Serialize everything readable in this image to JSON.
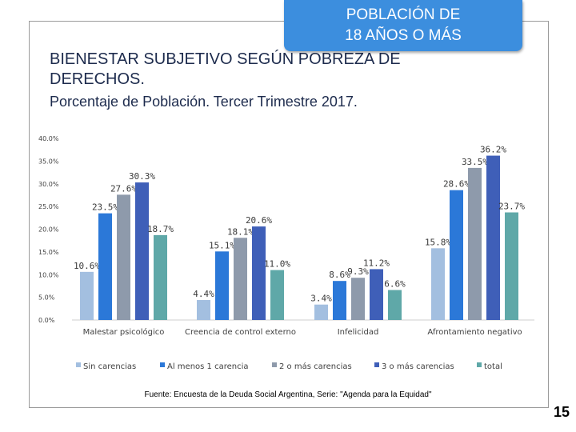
{
  "badge": {
    "line1": "POBLACIÓN DE",
    "line2": "18 AÑOS O MÁS"
  },
  "header": {
    "title": "BIENESTAR SUBJETIVO SEGÚN POBREZA DE DERECHOS.",
    "subtitle": "Porcentaje de Población. Tercer Trimestre 2017."
  },
  "footer": {
    "source": "Fuente: Encuesta de la Deuda Social Argentina, Serie: \"Agenda para la Equidad\"",
    "page_number": "15"
  },
  "chart_data": {
    "type": "bar",
    "title": "BIENESTAR SUBJETIVO SEGÚN POBREZA DE DERECHOS.",
    "subtitle": "Porcentaje de Población. Tercer Trimestre 2017.",
    "categories": [
      "Malestar psicológico",
      "Creencia de control externo",
      "Infelicidad",
      "Afrontamiento negativo"
    ],
    "series": [
      {
        "name": "Sin carencias",
        "color": "#a3bfe0",
        "values": [
          10.6,
          4.4,
          3.4,
          15.8
        ],
        "labels": [
          "10.6%",
          "4.4%",
          "3.4%",
          "15.8%"
        ]
      },
      {
        "name": "Al menos 1 carencia",
        "color": "#2b78d8",
        "values": [
          23.5,
          15.1,
          8.6,
          28.6
        ],
        "labels": [
          "23.5%",
          "15.1%",
          "8.6%",
          "28.6%"
        ]
      },
      {
        "name": "2 o más carencias",
        "color": "#8e9aab",
        "values": [
          27.6,
          18.1,
          9.3,
          33.5
        ],
        "labels": [
          "27.6%",
          "18.1%",
          "9.3%",
          "33.5%"
        ]
      },
      {
        "name": "3 o más carencias",
        "color": "#3f5fb8",
        "values": [
          30.3,
          20.6,
          11.2,
          36.2
        ],
        "labels": [
          "30.3%",
          "20.6%",
          "11.2%",
          "36.2%"
        ]
      },
      {
        "name": "total",
        "color": "#5fa8a8",
        "values": [
          18.7,
          11.0,
          6.6,
          23.7
        ],
        "labels": [
          "18.7%",
          "11.0%",
          "6.6%",
          "23.7%"
        ]
      }
    ],
    "ylim": [
      0,
      40
    ],
    "yticks": [
      "0.0%",
      "5.0%",
      "10.0%",
      "15.0%",
      "20.0%",
      "25.0%",
      "30.0%",
      "35.0%",
      "40.0%"
    ],
    "grid": false,
    "legend_position": "bottom",
    "xlabel": "",
    "ylabel": ""
  }
}
